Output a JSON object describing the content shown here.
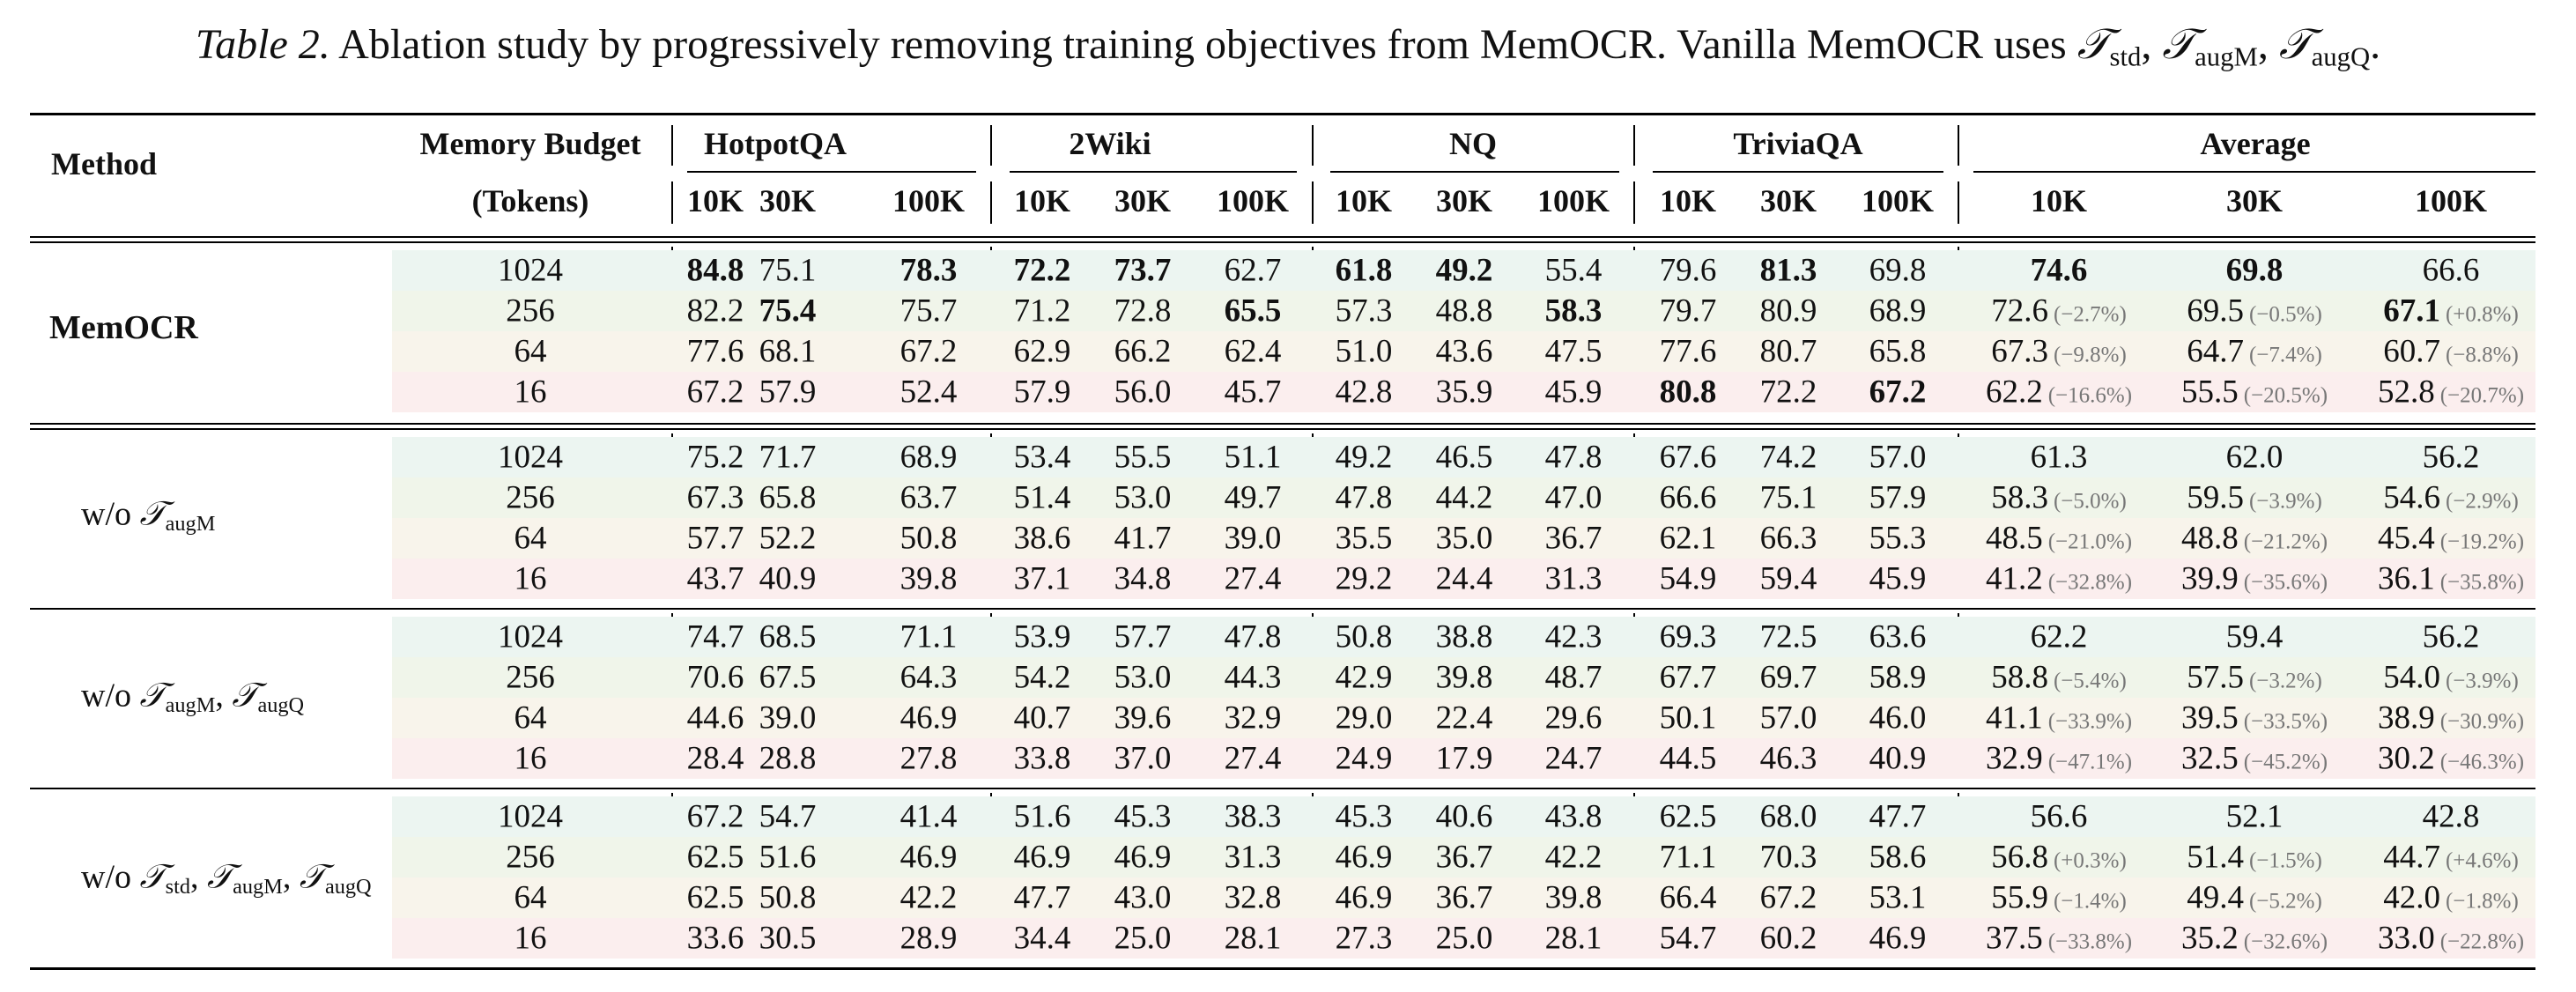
{
  "caption": {
    "label": "Table 2.",
    "text": "Ablation study by progressively removing training objectives from MemOCR. Vanilla MemOCR uses",
    "symbol": "𝒯",
    "subs": [
      "std",
      "augM",
      "augQ"
    ]
  },
  "header": {
    "method": "Method",
    "budget_line1": "Memory Budget",
    "budget_line2": "(Tokens)",
    "groups": [
      "HotpotQA",
      "2Wiki",
      "NQ",
      "TriviaQA",
      "Average"
    ],
    "subcols": [
      "10K",
      "30K",
      "100K"
    ]
  },
  "colors": {
    "row_1024": "#ecf5f1",
    "row_256": "#f0f5ea",
    "row_64": "#f8f4eb",
    "row_16": "#fbeeee",
    "delta_text": "#777777"
  },
  "blocks": [
    {
      "method": "MemOCR",
      "rows": [
        {
          "budget": "1024",
          "values": [
            "84.8",
            "75.1",
            "78.3",
            "72.2",
            "73.7",
            "62.7",
            "61.8",
            "49.2",
            "55.4",
            "79.6",
            "81.3",
            "69.8",
            "74.6",
            "69.8",
            "66.6"
          ],
          "bold": [
            0,
            2,
            3,
            4,
            6,
            7,
            10,
            12,
            13
          ],
          "deltas": [
            "",
            "",
            ""
          ]
        },
        {
          "budget": "256",
          "values": [
            "82.2",
            "75.4",
            "75.7",
            "71.2",
            "72.8",
            "65.5",
            "57.3",
            "48.8",
            "58.3",
            "79.7",
            "80.9",
            "68.9",
            "72.6",
            "69.5",
            "67.1"
          ],
          "bold": [
            1,
            5,
            8,
            14
          ],
          "deltas": [
            "(−2.7%)",
            "(−0.5%)",
            "(+0.8%)"
          ]
        },
        {
          "budget": "64",
          "values": [
            "77.6",
            "68.1",
            "67.2",
            "62.9",
            "66.2",
            "62.4",
            "51.0",
            "43.6",
            "47.5",
            "77.6",
            "80.7",
            "65.8",
            "67.3",
            "64.7",
            "60.7"
          ],
          "bold": [],
          "deltas": [
            "(−9.8%)",
            "(−7.4%)",
            "(−8.8%)"
          ]
        },
        {
          "budget": "16",
          "values": [
            "67.2",
            "57.9",
            "52.4",
            "57.9",
            "56.0",
            "45.7",
            "42.8",
            "35.9",
            "45.9",
            "80.8",
            "72.2",
            "67.2",
            "62.2",
            "55.5",
            "52.8"
          ],
          "bold": [
            9,
            11
          ],
          "deltas": [
            "(−16.6%)",
            "(−20.5%)",
            "(−20.7%)"
          ]
        }
      ]
    },
    {
      "method": "w/o augM",
      "rows": [
        {
          "budget": "1024",
          "values": [
            "75.2",
            "71.7",
            "68.9",
            "53.4",
            "55.5",
            "51.1",
            "49.2",
            "46.5",
            "47.8",
            "67.6",
            "74.2",
            "57.0",
            "61.3",
            "62.0",
            "56.2"
          ],
          "bold": [],
          "deltas": [
            "",
            "",
            ""
          ]
        },
        {
          "budget": "256",
          "values": [
            "67.3",
            "65.8",
            "63.7",
            "51.4",
            "53.0",
            "49.7",
            "47.8",
            "44.2",
            "47.0",
            "66.6",
            "75.1",
            "57.9",
            "58.3",
            "59.5",
            "54.6"
          ],
          "bold": [],
          "deltas": [
            "(−5.0%)",
            "(−3.9%)",
            "(−2.9%)"
          ]
        },
        {
          "budget": "64",
          "values": [
            "57.7",
            "52.2",
            "50.8",
            "38.6",
            "41.7",
            "39.0",
            "35.5",
            "35.0",
            "36.7",
            "62.1",
            "66.3",
            "55.3",
            "48.5",
            "48.8",
            "45.4"
          ],
          "bold": [],
          "deltas": [
            "(−21.0%)",
            "(−21.2%)",
            "(−19.2%)"
          ]
        },
        {
          "budget": "16",
          "values": [
            "43.7",
            "40.9",
            "39.8",
            "37.1",
            "34.8",
            "27.4",
            "29.2",
            "24.4",
            "31.3",
            "54.9",
            "59.4",
            "45.9",
            "41.2",
            "39.9",
            "36.1"
          ],
          "bold": [],
          "deltas": [
            "(−32.8%)",
            "(−35.6%)",
            "(−35.8%)"
          ]
        }
      ]
    },
    {
      "method": "w/o augM, augQ",
      "rows": [
        {
          "budget": "1024",
          "values": [
            "74.7",
            "68.5",
            "71.1",
            "53.9",
            "57.7",
            "47.8",
            "50.8",
            "38.8",
            "42.3",
            "69.3",
            "72.5",
            "63.6",
            "62.2",
            "59.4",
            "56.2"
          ],
          "bold": [],
          "deltas": [
            "",
            "",
            ""
          ]
        },
        {
          "budget": "256",
          "values": [
            "70.6",
            "67.5",
            "64.3",
            "54.2",
            "53.0",
            "44.3",
            "42.9",
            "39.8",
            "48.7",
            "67.7",
            "69.7",
            "58.9",
            "58.8",
            "57.5",
            "54.0"
          ],
          "bold": [],
          "deltas": [
            "(−5.4%)",
            "(−3.2%)",
            "(−3.9%)"
          ]
        },
        {
          "budget": "64",
          "values": [
            "44.6",
            "39.0",
            "46.9",
            "40.7",
            "39.6",
            "32.9",
            "29.0",
            "22.4",
            "29.6",
            "50.1",
            "57.0",
            "46.0",
            "41.1",
            "39.5",
            "38.9"
          ],
          "bold": [],
          "deltas": [
            "(−33.9%)",
            "(−33.5%)",
            "(−30.9%)"
          ]
        },
        {
          "budget": "16",
          "values": [
            "28.4",
            "28.8",
            "27.8",
            "33.8",
            "37.0",
            "27.4",
            "24.9",
            "17.9",
            "24.7",
            "44.5",
            "46.3",
            "40.9",
            "32.9",
            "32.5",
            "30.2"
          ],
          "bold": [],
          "deltas": [
            "(−47.1%)",
            "(−45.2%)",
            "(−46.3%)"
          ]
        }
      ]
    },
    {
      "method": "w/o std, augM, augQ",
      "rows": [
        {
          "budget": "1024",
          "values": [
            "67.2",
            "54.7",
            "41.4",
            "51.6",
            "45.3",
            "38.3",
            "45.3",
            "40.6",
            "43.8",
            "62.5",
            "68.0",
            "47.7",
            "56.6",
            "52.1",
            "42.8"
          ],
          "bold": [],
          "deltas": [
            "",
            "",
            ""
          ]
        },
        {
          "budget": "256",
          "values": [
            "62.5",
            "51.6",
            "46.9",
            "46.9",
            "46.9",
            "31.3",
            "46.9",
            "36.7",
            "42.2",
            "71.1",
            "70.3",
            "58.6",
            "56.8",
            "51.4",
            "44.7"
          ],
          "bold": [],
          "deltas": [
            "(+0.3%)",
            "(−1.5%)",
            "(+4.6%)"
          ]
        },
        {
          "budget": "64",
          "values": [
            "62.5",
            "50.8",
            "42.2",
            "47.7",
            "43.0",
            "32.8",
            "46.9",
            "36.7",
            "39.8",
            "66.4",
            "67.2",
            "53.1",
            "55.9",
            "49.4",
            "42.0"
          ],
          "bold": [],
          "deltas": [
            "(−1.4%)",
            "(−5.2%)",
            "(−1.8%)"
          ]
        },
        {
          "budget": "16",
          "values": [
            "33.6",
            "30.5",
            "28.9",
            "34.4",
            "25.0",
            "28.1",
            "27.3",
            "25.0",
            "28.1",
            "54.7",
            "60.2",
            "46.9",
            "37.5",
            "35.2",
            "33.0"
          ],
          "bold": [],
          "deltas": [
            "(−33.8%)",
            "(−32.6%)",
            "(−22.8%)"
          ]
        }
      ]
    }
  ]
}
